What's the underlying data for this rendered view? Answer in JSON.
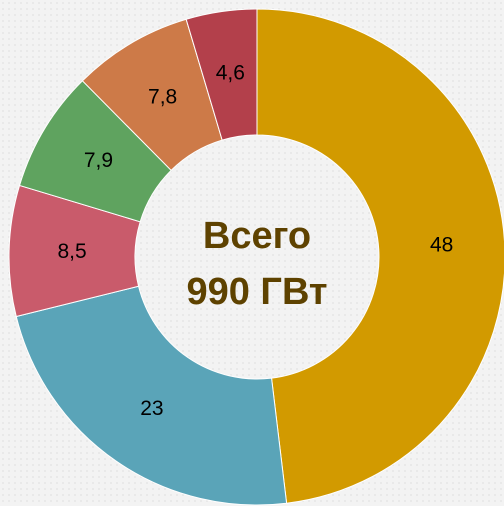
{
  "chart_data": {
    "type": "donut",
    "values": [
      48,
      23,
      8.5,
      7.9,
      7.8,
      4.6
    ],
    "value_labels": [
      "48",
      "23",
      "8,5",
      "7,9",
      "7,8",
      "4,6"
    ],
    "colors": [
      "#d29a00",
      "#5aa4b8",
      "#c95b6b",
      "#5fa35f",
      "#cd7a48",
      "#b3404b"
    ],
    "center_text": [
      "Всего",
      "990 ГВт"
    ]
  }
}
